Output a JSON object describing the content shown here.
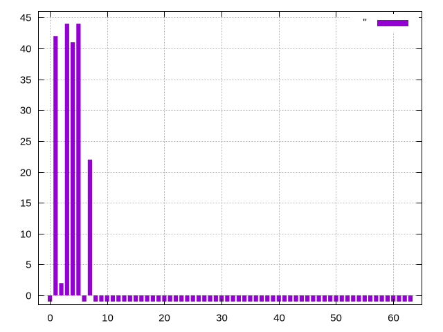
{
  "chart_data": {
    "type": "bar",
    "title": "",
    "xlabel": "",
    "ylabel": "",
    "xlim": [
      -2,
      65
    ],
    "ylim": [
      -1.5,
      46
    ],
    "x_ticks": [
      0,
      10,
      20,
      30,
      40,
      50,
      60
    ],
    "y_ticks": [
      0,
      5,
      10,
      15,
      20,
      25,
      30,
      35,
      40,
      45
    ],
    "grid": true,
    "legend_position": "top-right",
    "bar_color": "#9400d3",
    "series": [
      {
        "name": "''",
        "x": [
          0,
          1,
          2,
          3,
          4,
          5,
          6,
          7,
          8,
          9,
          10,
          11,
          12,
          13,
          14,
          15,
          16,
          17,
          18,
          19,
          20,
          21,
          22,
          23,
          24,
          25,
          26,
          27,
          28,
          29,
          30,
          31,
          32,
          33,
          34,
          35,
          36,
          37,
          38,
          39,
          40,
          41,
          42,
          43,
          44,
          45,
          46,
          47,
          48,
          49,
          50,
          51,
          52,
          53,
          54,
          55,
          56,
          57,
          58,
          59,
          60,
          61,
          62,
          63
        ],
        "values": [
          -1,
          42,
          2,
          44,
          41,
          44,
          -1,
          22,
          -1,
          -1,
          -1,
          -1,
          -1,
          -1,
          -1,
          -1,
          -1,
          -1,
          -1,
          -1,
          -1,
          -1,
          -1,
          -1,
          -1,
          -1,
          -1,
          -1,
          -1,
          -1,
          -1,
          -1,
          -1,
          -1,
          -1,
          -1,
          -1,
          -1,
          -1,
          -1,
          -1,
          -1,
          -1,
          -1,
          -1,
          -1,
          -1,
          -1,
          -1,
          -1,
          -1,
          -1,
          -1,
          -1,
          -1,
          -1,
          -1,
          -1,
          -1,
          -1,
          -1,
          -1,
          -1,
          -1
        ]
      }
    ]
  }
}
